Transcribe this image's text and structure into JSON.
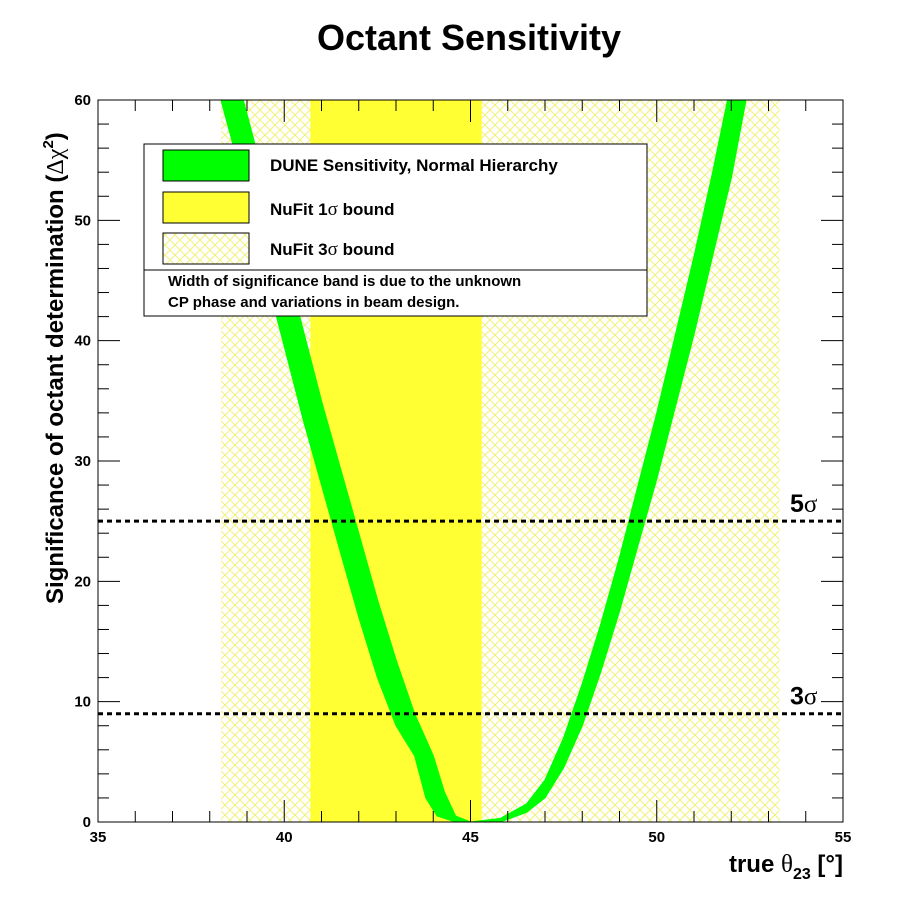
{
  "chart_data": {
    "type": "area",
    "title": "Octant Sensitivity",
    "xlabel": {
      "prefix": "true ",
      "symbol": "θ",
      "subscript": "23",
      "suffix": " [°]"
    },
    "ylabel": {
      "prefix": "Significance of octant determination (",
      "symbol": "Δχ",
      "superscript": "2",
      "suffix": ")"
    },
    "xlim": [
      35,
      55
    ],
    "ylim": [
      0,
      60
    ],
    "x_ticks": [
      35,
      40,
      45,
      50,
      55
    ],
    "y_ticks": [
      0,
      10,
      20,
      30,
      40,
      50,
      60
    ],
    "x_tick_labels": [
      "35",
      "40",
      "45",
      "50",
      "55"
    ],
    "y_tick_labels": [
      "0",
      "10",
      "20",
      "30",
      "40",
      "50",
      "60"
    ],
    "bands": [
      {
        "name": "NuFit 1σ bound",
        "x_range": [
          40.7,
          45.3
        ],
        "color": "#ffff33",
        "style": "solid"
      },
      {
        "name": "NuFit 3σ bound",
        "x_range": [
          38.3,
          53.3
        ],
        "color": "#ffff66",
        "style": "hatched"
      }
    ],
    "threshold_lines": [
      {
        "label_number": "5",
        "label_symbol": "σ",
        "y": 25
      },
      {
        "label_number": "3",
        "label_symbol": "σ",
        "y": 9
      }
    ],
    "series": [
      {
        "name": "DUNE Sensitivity, Normal Hierarchy",
        "color": "#00ff00",
        "left_branch": {
          "upper_edge": [
            [
              38.9,
              60
            ],
            [
              39.5,
              53
            ],
            [
              40.0,
              47
            ],
            [
              40.5,
              41
            ],
            [
              41.0,
              35
            ],
            [
              41.5,
              29.5
            ],
            [
              42.0,
              24
            ],
            [
              42.5,
              18.5
            ],
            [
              43.0,
              13.5
            ],
            [
              43.5,
              9
            ],
            [
              44.0,
              5.5
            ],
            [
              44.3,
              2.5
            ],
            [
              44.6,
              0.5
            ],
            [
              45.0,
              0
            ]
          ],
          "lower_edge": [
            [
              38.3,
              60
            ],
            [
              39.0,
              52
            ],
            [
              39.5,
              45.5
            ],
            [
              40.0,
              39.5
            ],
            [
              40.5,
              33.5
            ],
            [
              41.0,
              28
            ],
            [
              41.5,
              22.5
            ],
            [
              42.0,
              17
            ],
            [
              42.5,
              12
            ],
            [
              43.0,
              8
            ],
            [
              43.5,
              5.5
            ],
            [
              43.8,
              2
            ],
            [
              44.1,
              0.5
            ],
            [
              44.6,
              0
            ],
            [
              45.0,
              0
            ]
          ]
        },
        "right_branch": {
          "upper_edge": [
            [
              45.0,
              0
            ],
            [
              45.8,
              0.3
            ],
            [
              46.5,
              1.5
            ],
            [
              47.0,
              3.5
            ],
            [
              47.5,
              7
            ],
            [
              48.0,
              11.5
            ],
            [
              48.5,
              16.5
            ],
            [
              49.0,
              22
            ],
            [
              49.5,
              28
            ],
            [
              50.0,
              34
            ],
            [
              50.5,
              40.5
            ],
            [
              51.0,
              47
            ],
            [
              51.5,
              54
            ],
            [
              51.9,
              60
            ]
          ],
          "lower_edge": [
            [
              45.0,
              0
            ],
            [
              45.8,
              0
            ],
            [
              46.5,
              0.8
            ],
            [
              47.0,
              2
            ],
            [
              47.5,
              4.5
            ],
            [
              48.0,
              8
            ],
            [
              48.5,
              12.5
            ],
            [
              49.0,
              17.5
            ],
            [
              49.5,
              23
            ],
            [
              50.0,
              28.5
            ],
            [
              50.5,
              34.5
            ],
            [
              51.0,
              40.5
            ],
            [
              51.5,
              47
            ],
            [
              52.0,
              53.5
            ],
            [
              52.4,
              60
            ]
          ]
        }
      }
    ],
    "legend": {
      "placement": "top-left",
      "entries": [
        {
          "prefix": "DUNE Sensitivity, Normal Hierarchy",
          "symbol": "",
          "suffix": "",
          "swatch": "green"
        },
        {
          "prefix": "NuFit 1",
          "symbol": "σ",
          "suffix": " bound",
          "swatch": "yellow"
        },
        {
          "prefix": "NuFit 3",
          "symbol": "σ",
          "suffix": " bound",
          "swatch": "hatch"
        }
      ],
      "note_line1": "Width of significance band is due to the unknown",
      "note_line2": "CP phase and variations in beam design."
    },
    "grid": false
  }
}
